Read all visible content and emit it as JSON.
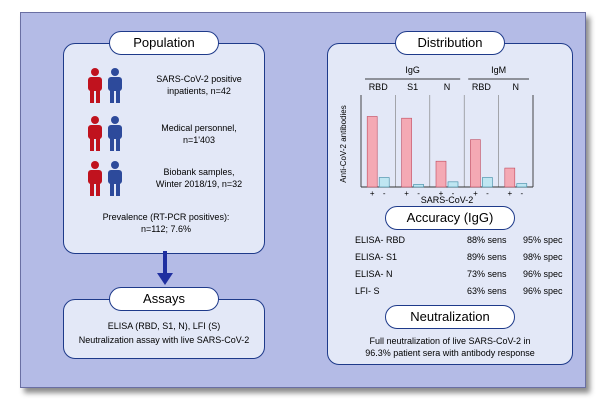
{
  "population": {
    "title": "Population",
    "groups": [
      {
        "line1": "SARS-CoV-2 positive",
        "line2": "inpatients, n=42"
      },
      {
        "line1": "Medical personnel,",
        "line2": "n=1'403"
      },
      {
        "line1": "Biobank samples,",
        "line2": "Winter 2018/19, n=32"
      }
    ],
    "prevalence_line1": "Prevalence (RT-PCR positives):",
    "prevalence_line2": "n=112; 7.6%"
  },
  "assays": {
    "title": "Assays",
    "line1": "ELISA (RBD, S1, N), LFI (S)",
    "line2": "Neutralization assay with live SARS-CoV-2"
  },
  "distribution": {
    "title": "Distribution"
  },
  "chart_data": {
    "type": "bar",
    "ylabel": "Anti-CoV-2 antibodies",
    "xlabel": "SARS-CoV-2",
    "groups": [
      {
        "class": "IgG",
        "assays": [
          "RBD",
          "S1",
          "N"
        ]
      },
      {
        "class": "IgM",
        "assays": [
          "RBD",
          "N"
        ]
      }
    ],
    "categories": [
      "IgG RBD",
      "IgG S1",
      "IgG N",
      "IgM RBD",
      "IgM N"
    ],
    "series": [
      {
        "name": "+",
        "values": [
          0.82,
          0.8,
          0.3,
          0.55,
          0.22
        ]
      },
      {
        "name": "-",
        "values": [
          0.11,
          0.03,
          0.06,
          0.11,
          0.04
        ]
      }
    ],
    "ylim": [
      0,
      1
    ],
    "tick_plus": "+",
    "tick_minus": "-",
    "colors": {
      "positive": "#f4a9b4",
      "negative": "#bfe6f2",
      "stroke": "#c04a5e",
      "stroke_neg": "#3b8aa3"
    }
  },
  "accuracy": {
    "title": "Accuracy (IgG)",
    "rows": [
      {
        "name": "ELISA- RBD",
        "sens": "88% sens",
        "spec": "95% spec"
      },
      {
        "name": "ELISA- S1",
        "sens": "89% sens",
        "spec": "98% spec"
      },
      {
        "name": "ELISA- N",
        "sens": "73% sens",
        "spec": "96% spec"
      },
      {
        "name": "LFI- S",
        "sens": "63% sens",
        "spec": "96% spec"
      }
    ]
  },
  "neutralization": {
    "title": "Neutralization",
    "line1": "Full neutralization of live SARS-CoV-2 in",
    "line2": "96.3% patient sera with antibody response"
  },
  "colors": {
    "frame": "#b4bbe6",
    "panel": "#e3e8f7",
    "border": "#1e3a8a",
    "person_red": "#c0121e",
    "person_blue": "#2d4a9b",
    "arrow": "#1f2fa0"
  }
}
